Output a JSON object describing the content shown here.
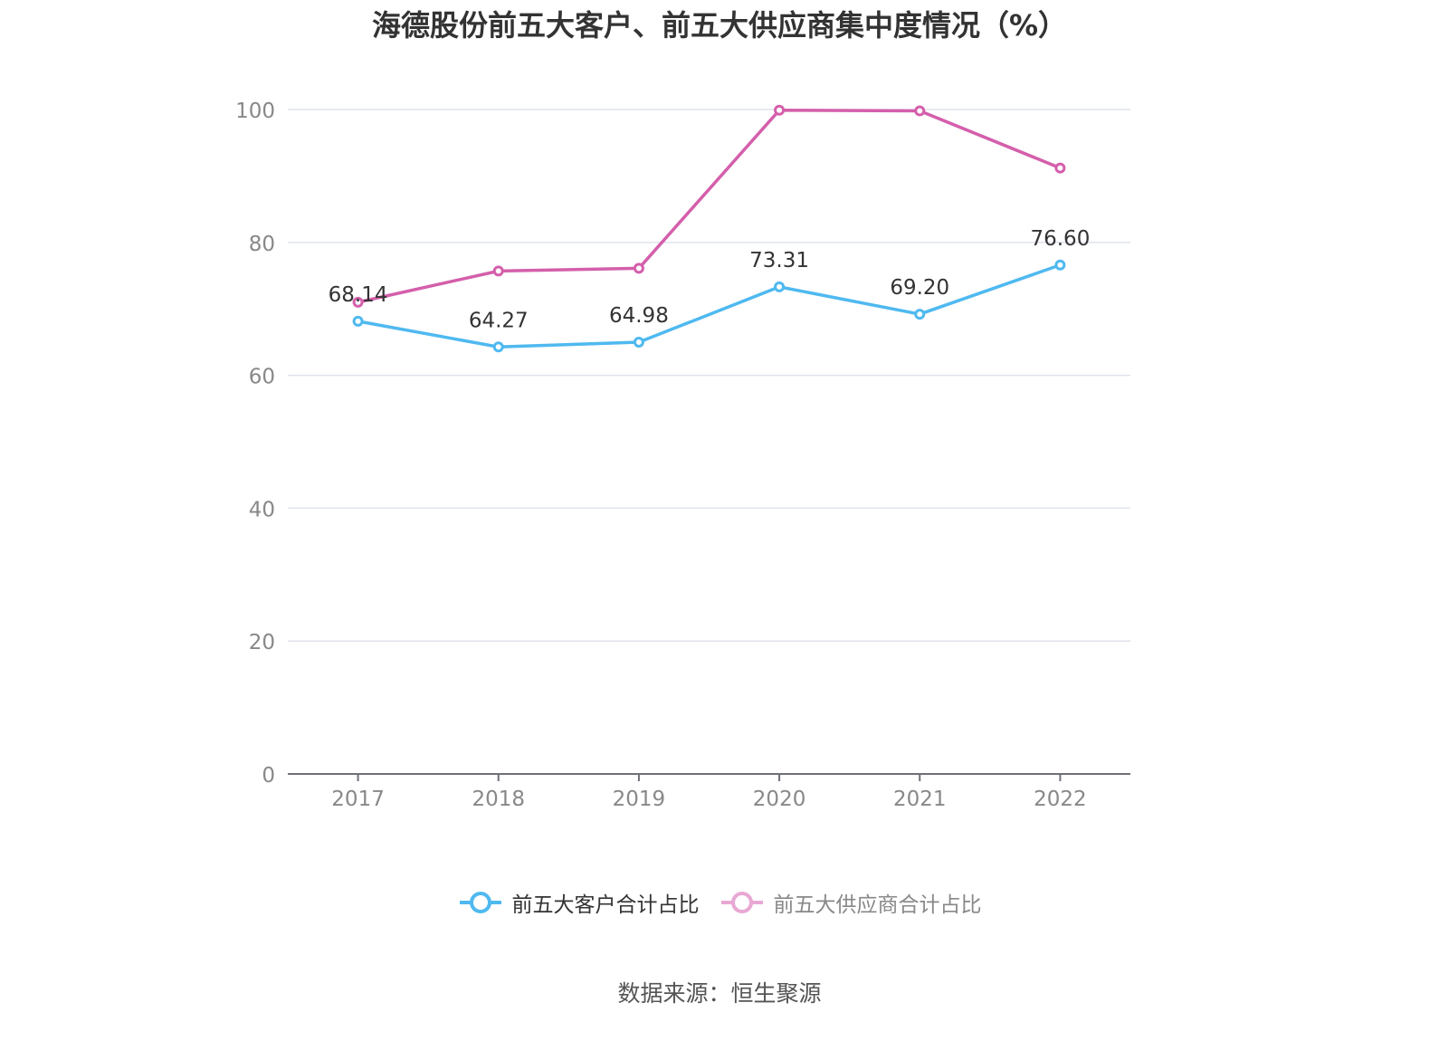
{
  "title": "海德股份前五大客户、前五大供应商集中度情况（%）",
  "source": "数据来源：恒生聚源",
  "legend": [
    {
      "name": "前五大客户合计占比",
      "color": "#4fb9f0"
    },
    {
      "name": "前五大供应商合计占比",
      "color": "#e8a8d4"
    }
  ],
  "chart_data": {
    "type": "line",
    "categories": [
      "2017",
      "2018",
      "2019",
      "2020",
      "2021",
      "2022"
    ],
    "yticks": [
      "0",
      "20",
      "40",
      "60",
      "80",
      "100"
    ],
    "ylim": [
      0,
      100
    ],
    "grid": true,
    "legend_position": "bottom",
    "series": [
      {
        "name": "前五大客户合计占比",
        "color": "#4fb9f0",
        "values": [
          68.14,
          64.27,
          64.98,
          73.31,
          69.2,
          76.6
        ],
        "labels": [
          "68.14",
          "64.27",
          "64.98",
          "73.31",
          "69.20",
          "76.60"
        ]
      },
      {
        "name": "前五大供应商合计占比",
        "color": "#d45fab",
        "values": [
          71.0,
          75.7,
          76.1,
          99.9,
          99.8,
          91.2
        ]
      }
    ]
  }
}
